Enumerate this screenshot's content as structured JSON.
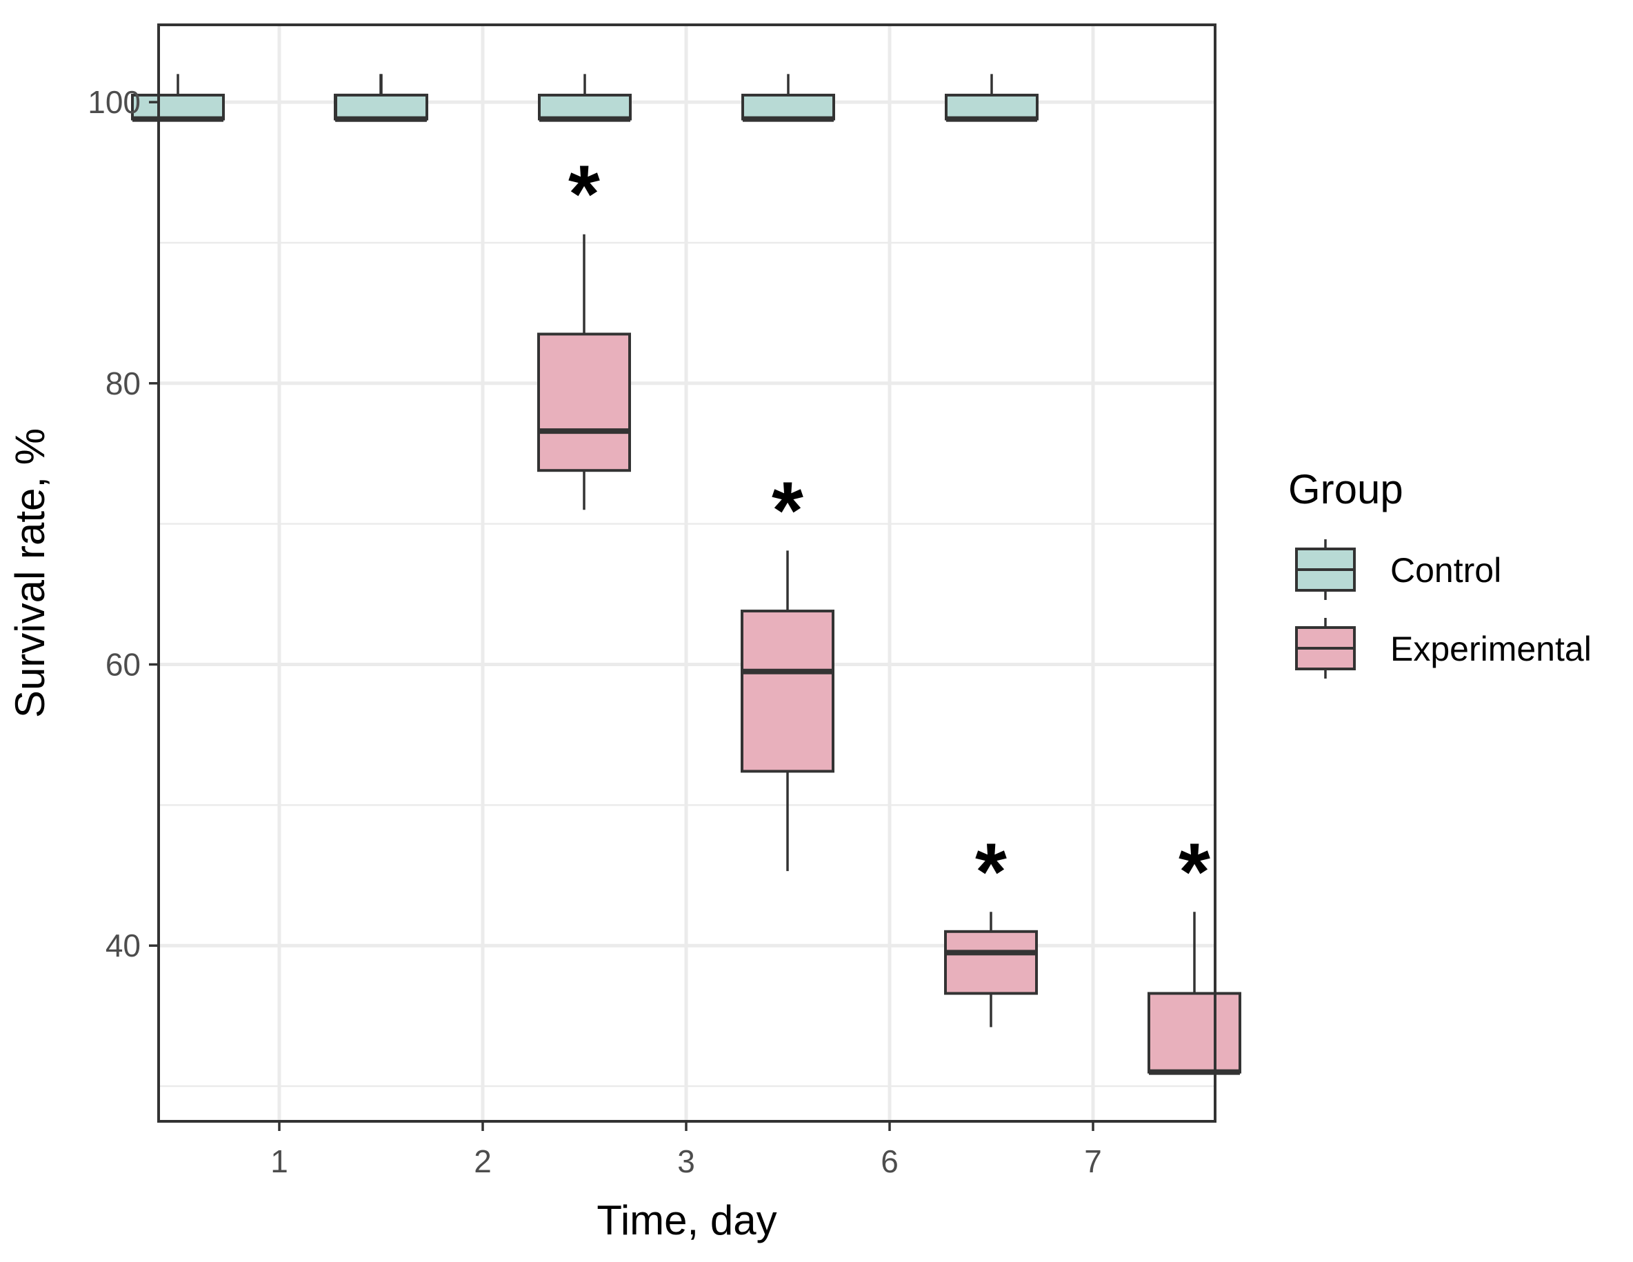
{
  "chart_data": {
    "type": "boxplot",
    "xlabel": "Time, day",
    "ylabel": "Survival rate, %",
    "categories": [
      "1",
      "2",
      "3",
      "6",
      "7"
    ],
    "ylim": [
      27.5,
      105.5
    ],
    "yticks": [
      40,
      60,
      80,
      100
    ],
    "grid": true,
    "legend": {
      "title": "Group",
      "position": "right",
      "entries": [
        "Control",
        "Experimental"
      ]
    },
    "colors": {
      "Control": "#b8dad5",
      "Experimental": "#e8b0bc",
      "outline": "#333333",
      "grid": "#ebebeb",
      "panel_border": "#333333"
    },
    "boxes": [
      {
        "category": "1",
        "group": "Control",
        "min": 98.8,
        "q1": 98.8,
        "median": 98.8,
        "q3": 100.5,
        "max": 102.0
      },
      {
        "category": "1",
        "group": "Experimental",
        "min": 98.8,
        "q1": 98.8,
        "median": 98.8,
        "q3": 100.5,
        "max": 102.0
      },
      {
        "category": "2",
        "group": "Control",
        "min": 98.8,
        "q1": 98.8,
        "median": 98.8,
        "q3": 100.5,
        "max": 102.0
      },
      {
        "category": "2",
        "group": "Experimental",
        "min": 71.0,
        "q1": 73.8,
        "median": 76.6,
        "q3": 83.5,
        "max": 90.6,
        "significant": true
      },
      {
        "category": "3",
        "group": "Control",
        "min": 98.8,
        "q1": 98.8,
        "median": 98.8,
        "q3": 100.5,
        "max": 102.0
      },
      {
        "category": "3",
        "group": "Experimental",
        "min": 45.3,
        "q1": 52.4,
        "median": 59.5,
        "q3": 63.8,
        "max": 68.1,
        "significant": true
      },
      {
        "category": "6",
        "group": "Control",
        "min": 98.8,
        "q1": 98.8,
        "median": 98.8,
        "q3": 100.5,
        "max": 102.0
      },
      {
        "category": "6",
        "group": "Experimental",
        "min": 34.2,
        "q1": 36.6,
        "median": 39.5,
        "q3": 41.0,
        "max": 42.4,
        "significant": true
      },
      {
        "category": "7",
        "group": "Control",
        "min": 98.8,
        "q1": 98.8,
        "median": 98.8,
        "q3": 100.5,
        "max": 102.0
      },
      {
        "category": "7",
        "group": "Experimental",
        "min": 31.0,
        "q1": 31.0,
        "median": 31.0,
        "q3": 36.6,
        "max": 42.4,
        "significant": true
      }
    ],
    "significance_marker": "*"
  }
}
